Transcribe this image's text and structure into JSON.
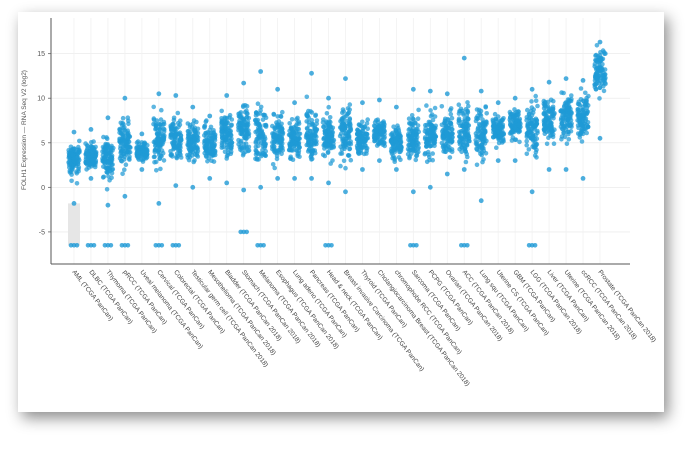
{
  "chart_data": {
    "type": "scatter",
    "ylabel": "FOLH1 Expression — RNA Seq V2 (log2)",
    "ylim": [
      -8.6,
      19.0
    ],
    "y_ticks": [
      -5,
      0,
      5,
      10,
      15
    ],
    "grid": true,
    "point_color": "#1f9ad6",
    "categories": [
      "AML (TCGA PanCan)",
      "DLBC (TCGA PanCan)",
      "Thymoma (TCGA PanCan)",
      "pRCC (TCGA PanCan)",
      "Uveal melanoma (TCGA PanCan)",
      "Cervical (TCGA PanCan)",
      "Colorectal (TCGA PanCan)",
      "Testicular germ cell (TCGA PanCan 2018)",
      "Mesothelioma (TCGA PanCan 2018)",
      "Bladder (TCGA PanCan 2018)",
      "Stomach (TCGA PanCan 2018)",
      "Melanoma (TCGA PanCan 2018)",
      "Esophagus (TCGA PanCan 2018)",
      "Lung adeno (TCGA PanCan)",
      "Pancreas (TCGA PanCan)",
      "Head & neck (TCGA PanCan)",
      "Breast invasive Carcinoma (TCGA PanCan)",
      "Thyroid (TCGA PanCan)",
      "Cholangiocarcinoma Breast (TCGA PanCan 2018)",
      "chromophobe RCC (TCGA PanCan)",
      "Sarcoma (TCGA PanCan)",
      "PCPG (TCGA PanCan)",
      "Ovarian (TCGA PanCan 2018)",
      "ACC (TCGA PanCan 2018)",
      "Lung squ (TCGA PanCan)",
      "Uterine CS (TCGA PanCan)",
      "GBM (TCGA PanCan)",
      "LGG (TCGA PanCan 2018)",
      "Liver (TCGA PanCan)",
      "Uterine (TCGA PanCan 2018)",
      "ccRCC (TCGA PanCan 2018)",
      "Prostate (TCGA PanCan 2018)"
    ],
    "series": [
      {
        "min": -1.8,
        "max": 6.2,
        "median": 3.0,
        "low_outliers": [
          -6.5
        ]
      },
      {
        "min": 1.0,
        "max": 6.5,
        "median": 3.5,
        "low_outliers": [
          -6.5
        ]
      },
      {
        "min": -2.0,
        "max": 7.8,
        "median": 3.2,
        "low_outliers": [
          -6.5
        ]
      },
      {
        "min": -1.0,
        "max": 10.0,
        "median": 5.0,
        "low_outliers": [
          -6.5
        ]
      },
      {
        "min": 2.0,
        "max": 6.0,
        "median": 4.0,
        "low_outliers": []
      },
      {
        "min": -1.8,
        "max": 10.5,
        "median": 5.0,
        "low_outliers": [
          -6.5
        ]
      },
      {
        "min": 0.2,
        "max": 10.3,
        "median": 5.5,
        "low_outliers": [
          -6.5
        ]
      },
      {
        "min": 0.0,
        "max": 9.0,
        "median": 5.0,
        "low_outliers": []
      },
      {
        "min": 1.0,
        "max": 8.0,
        "median": 5.0,
        "low_outliers": []
      },
      {
        "min": 0.5,
        "max": 10.3,
        "median": 6.0,
        "low_outliers": []
      },
      {
        "min": -0.3,
        "max": 11.7,
        "median": 6.5,
        "low_outliers": [
          -5.0
        ]
      },
      {
        "min": 0.0,
        "max": 13.0,
        "median": 6.0,
        "low_outliers": [
          -6.5
        ]
      },
      {
        "min": 1.0,
        "max": 11.0,
        "median": 5.5,
        "low_outliers": []
      },
      {
        "min": 1.0,
        "max": 9.5,
        "median": 5.5,
        "low_outliers": []
      },
      {
        "min": 1.0,
        "max": 12.8,
        "median": 6.0,
        "low_outliers": []
      },
      {
        "min": 0.5,
        "max": 10.0,
        "median": 5.5,
        "low_outliers": [
          -6.5
        ]
      },
      {
        "min": -0.5,
        "max": 12.2,
        "median": 6.0,
        "low_outliers": []
      },
      {
        "min": 2.0,
        "max": 9.5,
        "median": 5.5,
        "low_outliers": []
      },
      {
        "min": 3.0,
        "max": 9.8,
        "median": 6.0,
        "low_outliers": []
      },
      {
        "min": 2.0,
        "max": 9.0,
        "median": 5.0,
        "low_outliers": []
      },
      {
        "min": -0.5,
        "max": 11.0,
        "median": 5.5,
        "low_outliers": [
          -6.5
        ]
      },
      {
        "min": 0.0,
        "max": 10.8,
        "median": 6.0,
        "low_outliers": []
      },
      {
        "min": 1.5,
        "max": 10.5,
        "median": 6.0,
        "low_outliers": []
      },
      {
        "min": 2.0,
        "max": 14.5,
        "median": 6.5,
        "low_outliers": [
          -6.5
        ]
      },
      {
        "min": -1.5,
        "max": 10.8,
        "median": 6.0,
        "low_outliers": []
      },
      {
        "min": 3.0,
        "max": 9.5,
        "median": 6.5,
        "low_outliers": []
      },
      {
        "min": 3.0,
        "max": 10.0,
        "median": 7.0,
        "low_outliers": []
      },
      {
        "min": -0.5,
        "max": 11.0,
        "median": 6.5,
        "low_outliers": [
          -6.5
        ]
      },
      {
        "min": 2.0,
        "max": 11.8,
        "median": 7.5,
        "low_outliers": []
      },
      {
        "min": 2.0,
        "max": 12.2,
        "median": 8.0,
        "low_outliers": []
      },
      {
        "min": 1.0,
        "max": 12.0,
        "median": 8.0,
        "low_outliers": []
      },
      {
        "min": 5.5,
        "max": 16.3,
        "median": 13.0,
        "low_outliers": []
      }
    ]
  }
}
